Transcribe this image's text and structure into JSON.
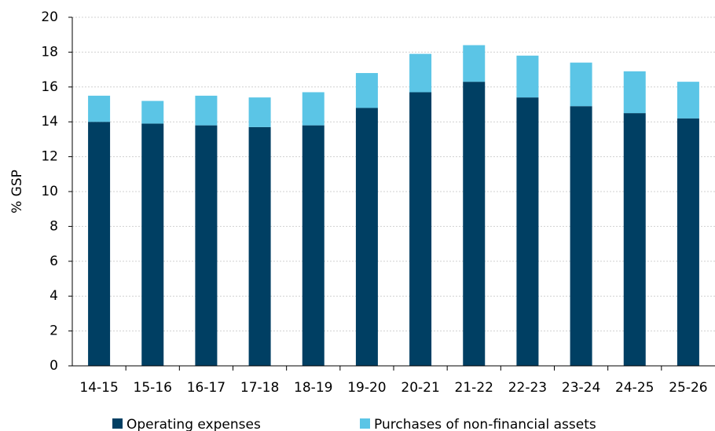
{
  "chart_data": {
    "type": "stacked_bar",
    "y_label": "% GSP",
    "categories": [
      "14-15",
      "15-16",
      "16-17",
      "17-18",
      "18-19",
      "19-20",
      "20-21",
      "21-22",
      "22-23",
      "23-24",
      "24-25",
      "25-26"
    ],
    "series": [
      {
        "name": "Operating expenses",
        "color": "#003f63",
        "values": [
          14.0,
          13.9,
          13.8,
          13.7,
          13.8,
          14.8,
          15.7,
          16.3,
          15.4,
          14.9,
          14.5,
          14.2
        ]
      },
      {
        "name": "Purchases of non-financial assets",
        "color": "#5bc5e6",
        "values": [
          1.5,
          1.3,
          1.7,
          1.7,
          1.9,
          2.0,
          2.2,
          2.1,
          2.4,
          2.5,
          2.4,
          2.1
        ]
      }
    ],
    "ylim": [
      0,
      20
    ],
    "yticks": [
      0,
      2,
      4,
      6,
      8,
      10,
      12,
      14,
      16,
      18,
      20
    ],
    "grid": true,
    "legend": "bottom"
  }
}
